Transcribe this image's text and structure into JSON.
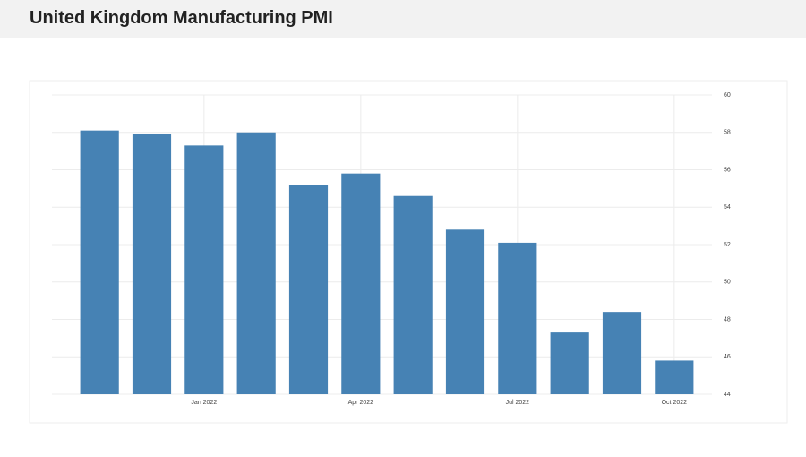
{
  "chart_data": {
    "type": "bar",
    "title": "United Kingdom Manufacturing PMI",
    "categories": [
      null,
      null,
      "Jan 2022",
      null,
      null,
      "Apr 2022",
      null,
      null,
      "Jul 2022",
      null,
      null,
      "Oct 2022"
    ],
    "values": [
      58.1,
      57.9,
      57.3,
      58.0,
      55.2,
      55.8,
      54.6,
      52.8,
      52.1,
      47.3,
      48.4,
      45.8
    ],
    "color": "#4682b4",
    "ylim": [
      44,
      60
    ],
    "yticks": [
      44,
      46,
      48,
      50,
      52,
      54,
      56,
      58,
      60
    ],
    "grid": true
  }
}
